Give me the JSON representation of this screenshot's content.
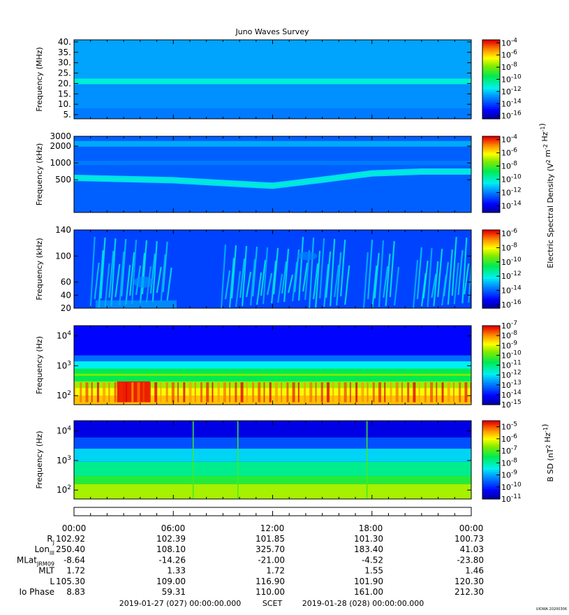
{
  "title": "Juno Waves Survey",
  "footer_stamp": "UIOWA 20200306",
  "panels": [
    {
      "id": "hf",
      "ylabel": "Frequency (MHz)",
      "yticks": [
        "5.",
        "10.",
        "15.",
        "20.",
        "25.",
        "30.",
        "35.",
        "40."
      ],
      "yscale": "linear",
      "yrange": [
        3,
        41
      ],
      "colorbar": {
        "labels": [
          "10^-4",
          "10^-6",
          "10^-8",
          "10^-10",
          "10^-12",
          "10^-14",
          "10^-16"
        ],
        "log_range": [
          -16.5,
          -3.5
        ]
      }
    },
    {
      "id": "mf",
      "ylabel": "Frequency (kHz)",
      "yticks": [
        "500",
        "1000",
        "2000",
        "3000"
      ],
      "yscale": "log",
      "yrange": [
        130,
        3000
      ],
      "colorbar": {
        "labels": [
          "10^-4",
          "10^-6",
          "10^-8",
          "10^-10",
          "10^-12",
          "10^-14"
        ],
        "log_range": [
          -15,
          -3.5
        ]
      }
    },
    {
      "id": "lf",
      "ylabel": "Frequency (kHz)",
      "yticks": [
        "20",
        "40",
        "60",
        "100",
        "140"
      ],
      "yscale": "linear",
      "yrange": [
        20,
        140
      ],
      "colorbar": {
        "labels": [
          "10^-6",
          "10^-8",
          "10^-10",
          "10^-12",
          "10^-14",
          "10^-16"
        ],
        "log_range": [
          -16.5,
          -5.5
        ]
      }
    },
    {
      "id": "e-low",
      "ylabel": "Frequency (Hz)",
      "yticks": [
        "10^2",
        "10^3",
        "10^4"
      ],
      "yscale": "log",
      "yrange": [
        50,
        22000
      ],
      "colorbar": {
        "labels": [
          "10^-7",
          "10^-8",
          "10^-9",
          "10^-10",
          "10^-11",
          "10^-12",
          "10^-13",
          "10^-14",
          "10^-15"
        ],
        "log_range": [
          -15,
          -7
        ]
      }
    },
    {
      "id": "b-low",
      "ylabel": "Frequency (Hz)",
      "yticks": [
        "10^2",
        "10^3",
        "10^4"
      ],
      "yscale": "log",
      "yrange": [
        50,
        22000
      ],
      "colorbar": {
        "labels": [
          "10^-5",
          "10^-6",
          "10^-7",
          "10^-8",
          "10^-9",
          "10^-10",
          "10^-11"
        ],
        "log_range": [
          -11,
          -4.5
        ]
      }
    }
  ],
  "colorbar_titles": {
    "electric": "Electric Spectral Density (V^2 m^-2 Hz^-1)",
    "magnetic": "B SD (nT^2 Hz^-1)"
  },
  "ephemeris": {
    "times": [
      "00:00",
      "06:00",
      "12:00",
      "18:00",
      "00:00"
    ],
    "rows": [
      {
        "label": "R",
        "sub": "J",
        "values": [
          "102.92",
          "102.39",
          "101.85",
          "101.30",
          "100.73"
        ]
      },
      {
        "label": "Lon",
        "sub": "III",
        "values": [
          "250.40",
          "108.10",
          "325.70",
          "183.40",
          "41.03"
        ]
      },
      {
        "label": "MLat",
        "sub": "JRM09",
        "values": [
          "-8.64",
          "-14.26",
          "-21.00",
          "-4.52",
          "-23.80"
        ]
      },
      {
        "label": "MLT",
        "sub": "",
        "values": [
          "1.72",
          "1.33",
          "1.72",
          "1.55",
          "1.46"
        ]
      },
      {
        "label": "L",
        "sub": "",
        "values": [
          "105.30",
          "109.00",
          "116.90",
          "101.90",
          "120.30"
        ]
      },
      {
        "label": "Io Phase",
        "sub": "",
        "values": [
          "8.83",
          "59.31",
          "110.00",
          "161.00",
          "212.30"
        ]
      }
    ],
    "start": "2019-01-27 (027) 00:00:00.000",
    "scet": "SCET",
    "end": "2019-01-28 (028) 00:00:00.000"
  },
  "chart_data": [
    {
      "type": "heatmap",
      "title": "Juno Waves Survey",
      "ylabel": "Frequency (MHz)",
      "ylim": [
        3,
        41
      ],
      "xlim": [
        "2019-01-27 00:00",
        "2019-01-28 00:00"
      ],
      "zlabel": "Electric Spectral Density (V^2 m^-2 Hz^-1)",
      "zlim_log10": [
        -16.5,
        -3.5
      ],
      "features": [
        {
          "name": "narrowband line",
          "freq": 21,
          "log_density": -11
        }
      ],
      "background_log_density": -12.7
    },
    {
      "type": "heatmap",
      "ylabel": "Frequency (kHz)",
      "ylim": [
        130,
        3000
      ],
      "yscale": "log",
      "zlabel": "Electric Spectral Density (V^2 m^-2 Hz^-1)",
      "zlim_log10": [
        -15,
        -3.5
      ],
      "features": [
        {
          "name": "drifting band",
          "freq_at_hours": {
            "0": 540,
            "6": 490,
            "10": 420,
            "12": 390,
            "15": 500,
            "18": 650,
            "21": 700,
            "24": 700
          }
        },
        {
          "name": "upper band",
          "freq": 2200
        }
      ],
      "background_log_density": -12.3
    },
    {
      "type": "heatmap",
      "ylabel": "Frequency (kHz)",
      "ylim": [
        20,
        140
      ],
      "zlabel": "Electric Spectral Density (V^2 m^-2 Hz^-1)",
      "zlim_log10": [
        -16.5,
        -5.5
      ],
      "background_log_density": -14.3,
      "bursts_hours": [
        [
          1,
          5.8
        ],
        [
          8.9,
          16.5
        ],
        [
          17.5,
          19.5
        ],
        [
          20.5,
          24
        ]
      ]
    },
    {
      "type": "heatmap",
      "ylabel": "Frequency (Hz)",
      "ylim": [
        50,
        22000
      ],
      "yscale": "log",
      "zlabel": "Electric Spectral Density (V^2 m^-2 Hz^-1)",
      "zlim_log10": [
        -15,
        -7
      ],
      "intense_band_hz": [
        60,
        300
      ],
      "intense_interval_hours": [
        2.6,
        4.6
      ]
    },
    {
      "type": "heatmap",
      "ylabel": "Frequency (Hz)",
      "ylim": [
        50,
        22000
      ],
      "yscale": "log",
      "zlabel": "B SD (nT^2 Hz^-1)",
      "zlim_log10": [
        -11,
        -4.5
      ],
      "spikes_hours": [
        7.2,
        9.9,
        17.7
      ]
    }
  ]
}
